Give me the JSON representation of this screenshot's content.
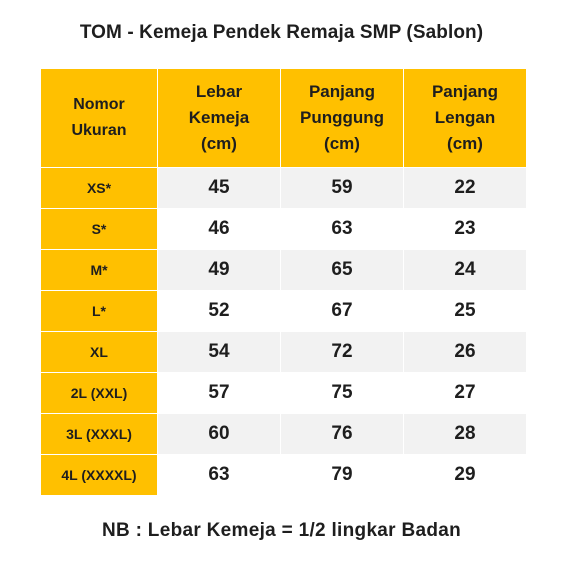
{
  "title": "TOM - Kemeja Pendek Remaja SMP (Sablon)",
  "table": {
    "headers": [
      [
        "Nomor",
        "Ukuran"
      ],
      [
        "Lebar",
        "Kemeja",
        "(cm)"
      ],
      [
        "Panjang",
        "Punggung",
        "(cm)"
      ],
      [
        "Panjang",
        "Lengan",
        "(cm)"
      ]
    ],
    "rows": [
      {
        "size": "XS*",
        "lebar": "45",
        "punggung": "59",
        "lengan": "22"
      },
      {
        "size": "S*",
        "lebar": "46",
        "punggung": "63",
        "lengan": "23"
      },
      {
        "size": "M*",
        "lebar": "49",
        "punggung": "65",
        "lengan": "24"
      },
      {
        "size": "L*",
        "lebar": "52",
        "punggung": "67",
        "lengan": "25"
      },
      {
        "size": "XL",
        "lebar": "54",
        "punggung": "72",
        "lengan": "26"
      },
      {
        "size": "2L (XXL)",
        "lebar": "57",
        "punggung": "75",
        "lengan": "27"
      },
      {
        "size": "3L (XXXL)",
        "lebar": "60",
        "punggung": "76",
        "lengan": "28"
      },
      {
        "size": "4L (XXXXL)",
        "lebar": "63",
        "punggung": "79",
        "lengan": "29"
      }
    ]
  },
  "note": "NB : Lebar Kemeja = 1/2 lingkar Badan",
  "colors": {
    "header_bg": "#ffc000",
    "row_alt_bg": "#f2f2f2",
    "text": "#1e1e1e"
  }
}
